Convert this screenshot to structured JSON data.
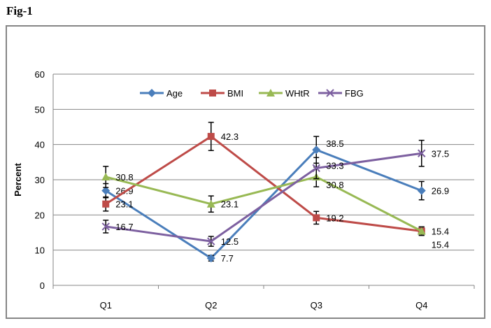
{
  "figure_label": "Fig-1",
  "chart_data": {
    "type": "line",
    "title": "",
    "xlabel": "",
    "ylabel": "Percent",
    "ylim": [
      0,
      60
    ],
    "yticks": [
      0,
      10,
      20,
      30,
      40,
      50,
      60
    ],
    "grid": true,
    "legend_position": "top-center",
    "categories": [
      "Q1",
      "Q2",
      "Q3",
      "Q4"
    ],
    "series": [
      {
        "name": "Age",
        "color": "#4a7ebb",
        "marker": "diamond",
        "values": [
          26.9,
          7.7,
          38.5,
          26.9
        ],
        "errors": [
          2,
          0.8,
          3.8,
          2.6
        ]
      },
      {
        "name": "BMI",
        "color": "#be4b48",
        "marker": "square",
        "values": [
          23.1,
          42.3,
          19.2,
          15.4
        ],
        "errors": [
          2,
          4,
          1.8,
          1.2
        ]
      },
      {
        "name": "WHtR",
        "color": "#98b954",
        "marker": "triangle",
        "values": [
          30.8,
          23.1,
          30.8,
          15.4
        ],
        "errors": [
          3,
          2.3,
          2.8,
          1.2
        ]
      },
      {
        "name": "FBG",
        "color": "#7d60a0",
        "marker": "x",
        "values": [
          16.7,
          12.5,
          33.3,
          37.5
        ],
        "errors": [
          1.8,
          1.4,
          3,
          3.7
        ]
      }
    ]
  }
}
